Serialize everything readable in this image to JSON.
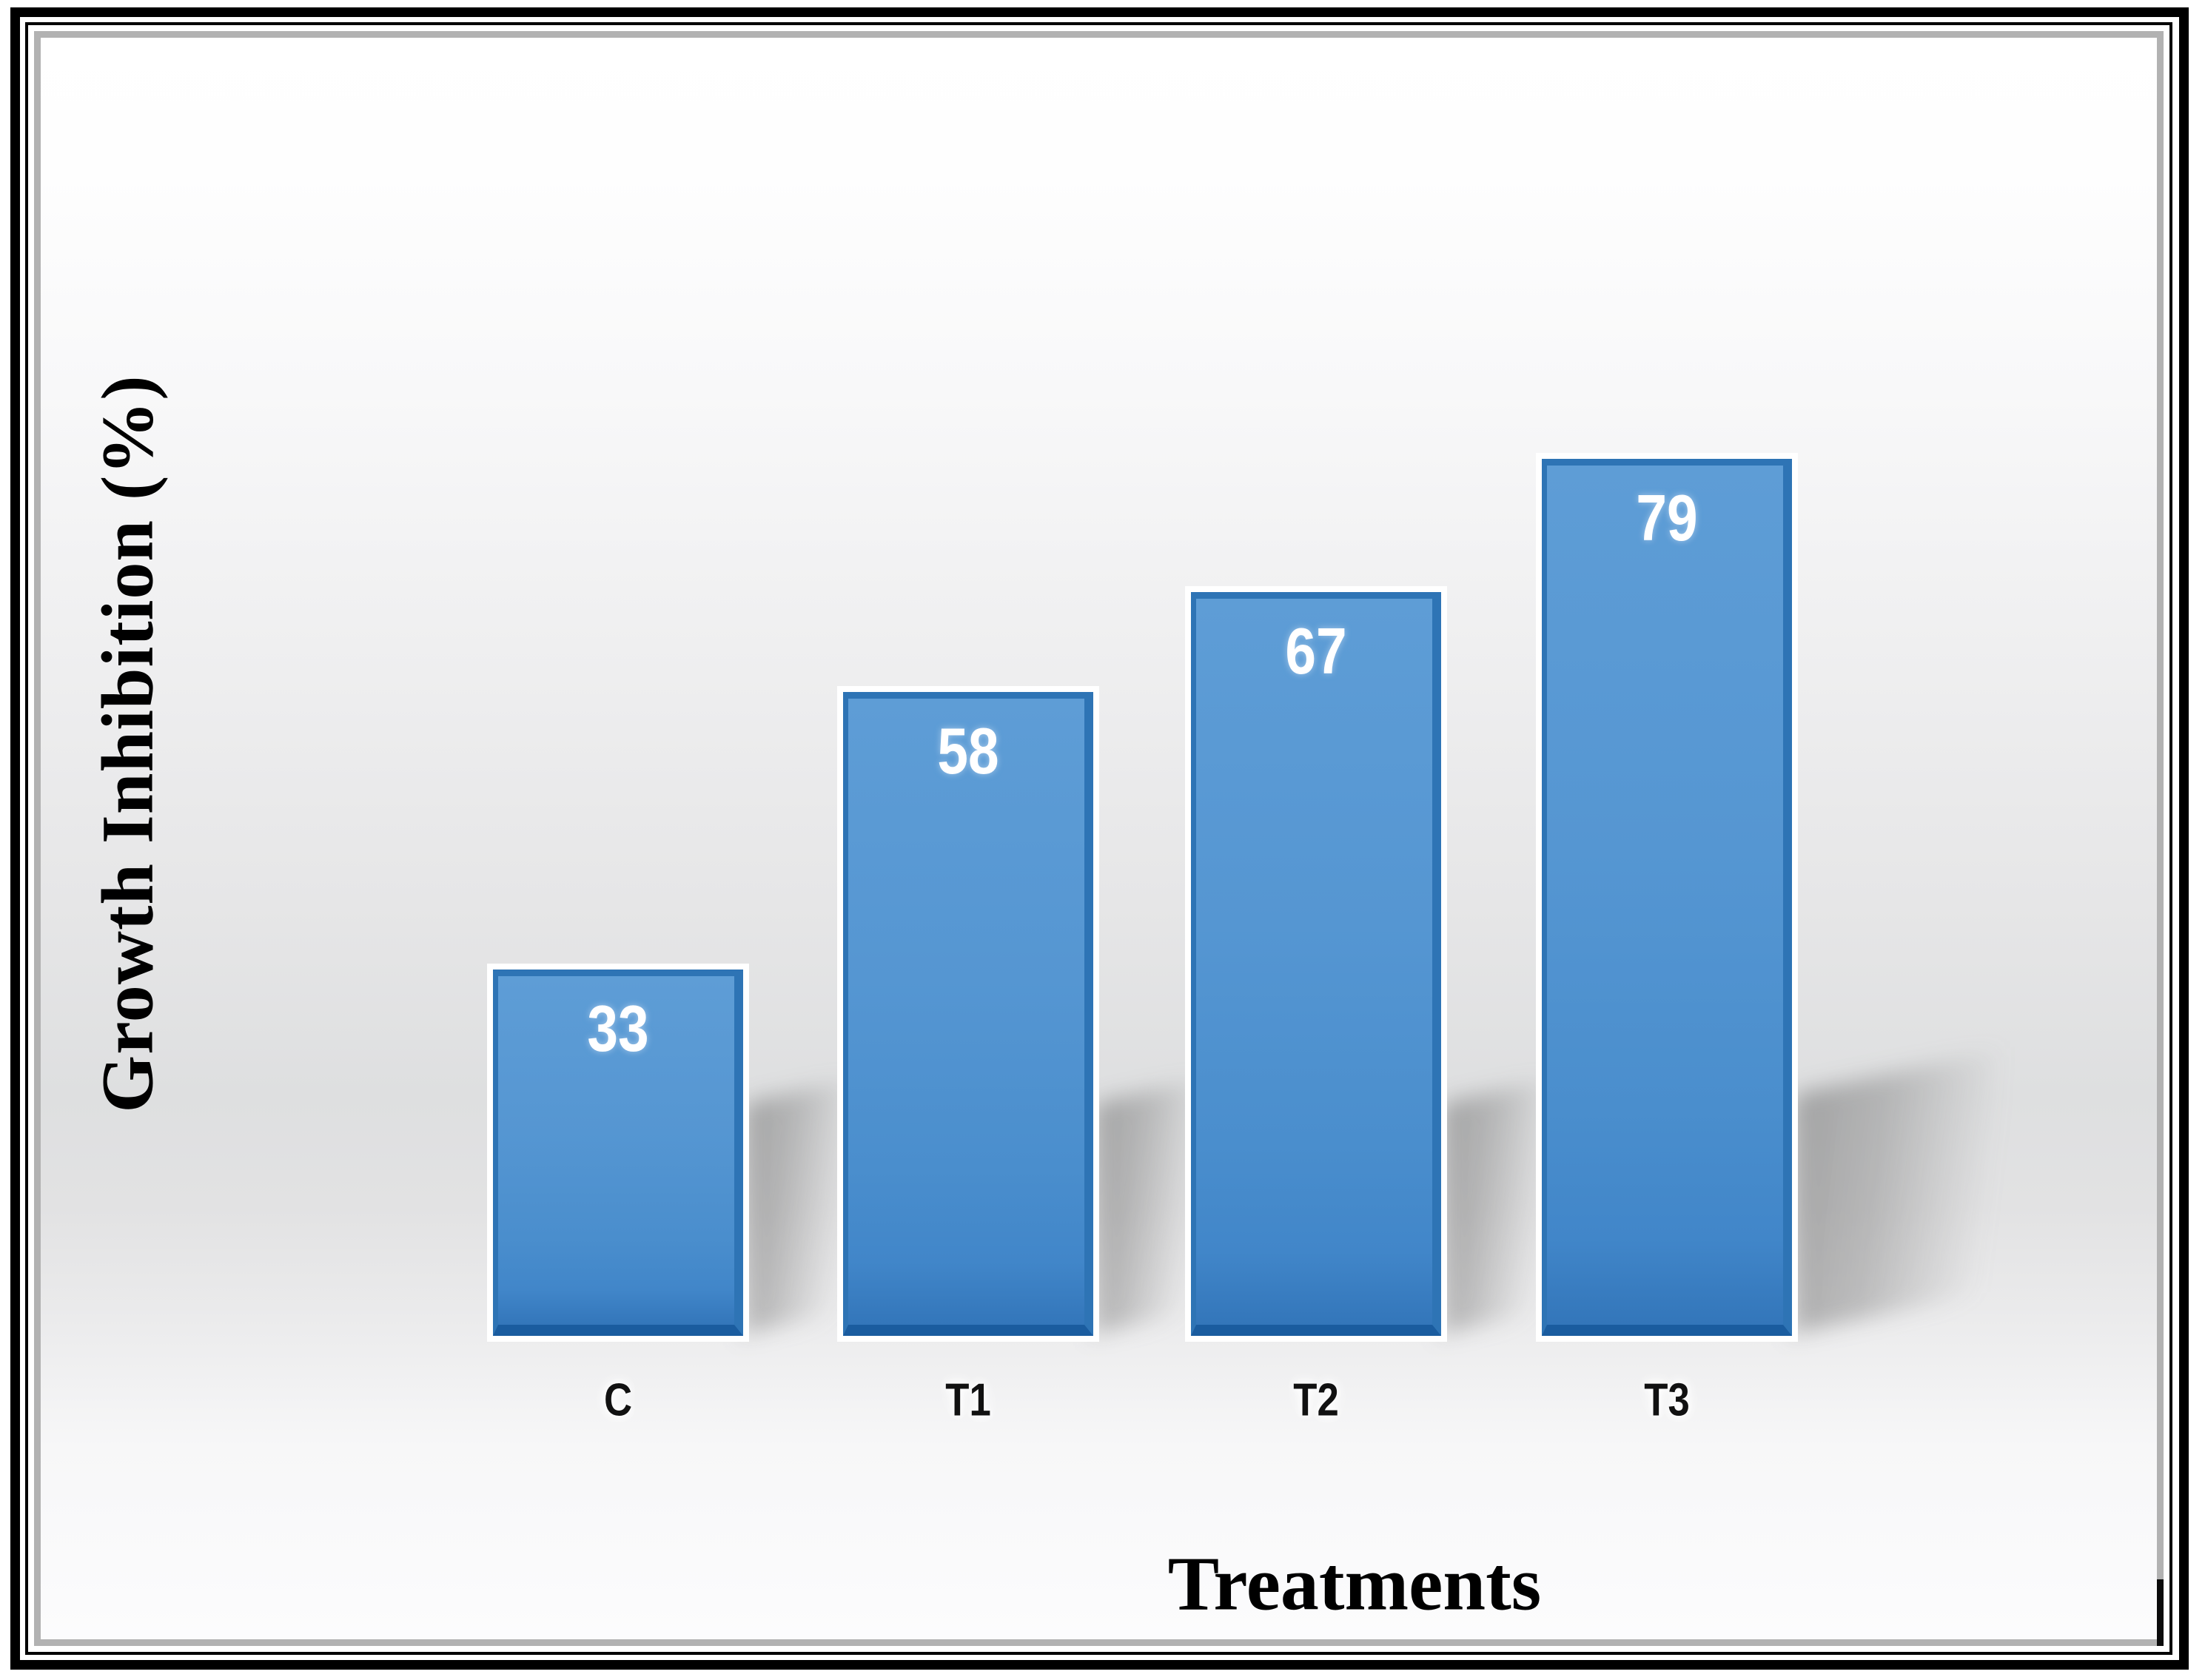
{
  "figure": {
    "type": "bar-chart-figure",
    "background_accent": "#e0e0e1",
    "frame_color": "#000000",
    "inner_frame_gray": "#b2b2b2"
  },
  "chart_data": {
    "type": "bar",
    "title": "",
    "categories": [
      "C",
      "T1",
      "T2",
      "T3"
    ],
    "values": [
      33,
      58,
      67,
      79
    ],
    "data_labels": [
      "33",
      "58",
      "67",
      "79"
    ],
    "xlabel": "Treatments",
    "ylabel": "Growth Inhibition (%)",
    "value_axis_visible": false,
    "grid": false,
    "legend": "none",
    "bar_fill_color": "#4a8ecd",
    "bar_border_color": "#2e74b5",
    "bar_bottom_border_color": "#1a5c9f",
    "bar_outline_color": "#ffffff",
    "data_label_color": "#ffffff",
    "tick_label_color": "#111111",
    "shadow_style": "soft gray perspective shadow right of each bar"
  }
}
